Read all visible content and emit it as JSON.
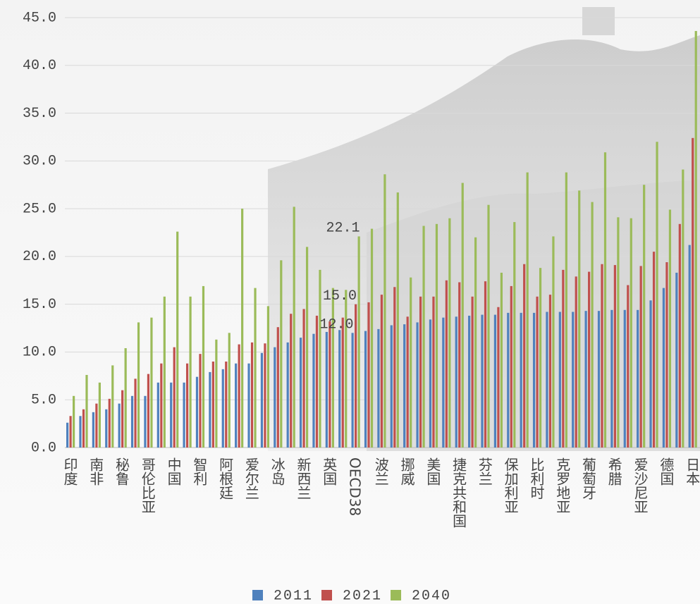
{
  "chart_data": {
    "type": "bar",
    "categories": [
      "印度",
      null,
      "南非",
      null,
      "秘鲁",
      null,
      "哥伦比亚",
      null,
      "中国",
      null,
      "智利",
      null,
      "阿根廷",
      null,
      "爱尔兰",
      null,
      "冰岛",
      null,
      "新西兰",
      null,
      "英国",
      null,
      "OECD38",
      null,
      "波兰",
      null,
      "挪威",
      null,
      "美国",
      null,
      "捷克共和国",
      null,
      "芬兰",
      null,
      "保加利亚",
      null,
      "比利时",
      null,
      "克罗地亚",
      null,
      "葡萄牙",
      null,
      "希腊",
      null,
      "爱沙尼亚",
      null,
      "德国",
      null,
      "日本"
    ],
    "series": [
      {
        "name": "2011",
        "color": "#4f81bd",
        "values": [
          2.6,
          3.3,
          3.7,
          4.0,
          4.6,
          5.4,
          5.4,
          6.8,
          6.8,
          6.8,
          7.4,
          7.9,
          8.2,
          8.8,
          8.8,
          9.9,
          10.5,
          11.0,
          11.5,
          11.9,
          12.1,
          12.3,
          12.0,
          12.2,
          12.4,
          12.8,
          12.9,
          13.1,
          13.4,
          13.6,
          13.7,
          13.8,
          13.9,
          13.9,
          14.1,
          14.1,
          14.1,
          14.2,
          14.2,
          14.2,
          14.3,
          14.3,
          14.4,
          14.4,
          14.4,
          15.4,
          16.7,
          18.3,
          21.2
        ],
        "value_labels": [
          null,
          null,
          null,
          null,
          null,
          null,
          null,
          null,
          null,
          null,
          null,
          null,
          null,
          null,
          null,
          null,
          null,
          null,
          null,
          null,
          null,
          null,
          "12.0",
          null,
          null,
          null,
          null,
          null,
          null,
          null,
          null,
          null,
          null,
          null,
          null,
          null,
          null,
          null,
          null,
          null,
          null,
          null,
          null,
          null,
          null,
          null,
          null,
          null,
          null
        ]
      },
      {
        "name": "2021",
        "color": "#c0504d",
        "values": [
          3.3,
          4.0,
          4.6,
          5.1,
          6.0,
          7.2,
          7.7,
          8.8,
          10.5,
          8.8,
          9.8,
          9.0,
          9.0,
          10.8,
          11.0,
          10.9,
          12.6,
          14.0,
          14.5,
          13.8,
          13.2,
          13.6,
          15.0,
          15.2,
          16.0,
          16.8,
          13.7,
          15.8,
          15.8,
          17.5,
          17.3,
          15.8,
          17.4,
          14.7,
          16.9,
          19.2,
          15.8,
          16.0,
          18.6,
          17.9,
          18.4,
          19.2,
          19.1,
          17.0,
          19.0,
          20.5,
          19.4,
          23.4,
          32.4
        ],
        "value_labels": [
          null,
          null,
          null,
          null,
          null,
          null,
          null,
          null,
          null,
          null,
          null,
          null,
          null,
          null,
          null,
          null,
          null,
          null,
          null,
          null,
          null,
          null,
          "15.0",
          null,
          null,
          null,
          null,
          null,
          null,
          null,
          null,
          null,
          null,
          null,
          null,
          null,
          null,
          null,
          null,
          null,
          null,
          null,
          null,
          null,
          null,
          null,
          null,
          null,
          null
        ]
      },
      {
        "name": "2040",
        "color": "#9bbb59",
        "values": [
          5.4,
          7.6,
          6.8,
          8.6,
          10.4,
          13.1,
          13.6,
          15.8,
          22.6,
          15.8,
          16.9,
          11.3,
          12.0,
          25.0,
          16.7,
          14.8,
          19.6,
          25.2,
          21.0,
          18.6,
          16.7,
          16.5,
          22.1,
          22.9,
          28.6,
          26.7,
          17.8,
          23.2,
          23.4,
          24.0,
          27.7,
          22.0,
          25.4,
          18.3,
          23.6,
          28.8,
          18.8,
          22.1,
          28.8,
          26.9,
          25.7,
          30.9,
          24.1,
          24.0,
          27.5,
          32.0,
          24.9,
          29.1,
          43.6
        ],
        "value_labels": [
          null,
          null,
          null,
          null,
          null,
          null,
          null,
          null,
          null,
          null,
          null,
          null,
          null,
          null,
          null,
          null,
          null,
          null,
          null,
          null,
          null,
          null,
          "22.1",
          null,
          null,
          null,
          null,
          null,
          null,
          null,
          null,
          null,
          null,
          null,
          null,
          null,
          null,
          null,
          null,
          null,
          null,
          null,
          null,
          null,
          null,
          null,
          null,
          null,
          null
        ]
      }
    ],
    "ylim": [
      0,
      45
    ],
    "yticks": [
      {
        "value": 0,
        "label": "0.0"
      },
      {
        "value": 5,
        "label": "5.0"
      },
      {
        "value": 10,
        "label": "10.0"
      },
      {
        "value": 15,
        "label": "15.0"
      },
      {
        "value": 20,
        "label": "20.0"
      },
      {
        "value": 25,
        "label": "25.0"
      },
      {
        "value": 30,
        "label": "30.0"
      },
      {
        "value": 35,
        "label": "35.0"
      },
      {
        "value": 40,
        "label": "40.0"
      },
      {
        "value": 45,
        "label": "45.0"
      }
    ],
    "grid": true
  }
}
